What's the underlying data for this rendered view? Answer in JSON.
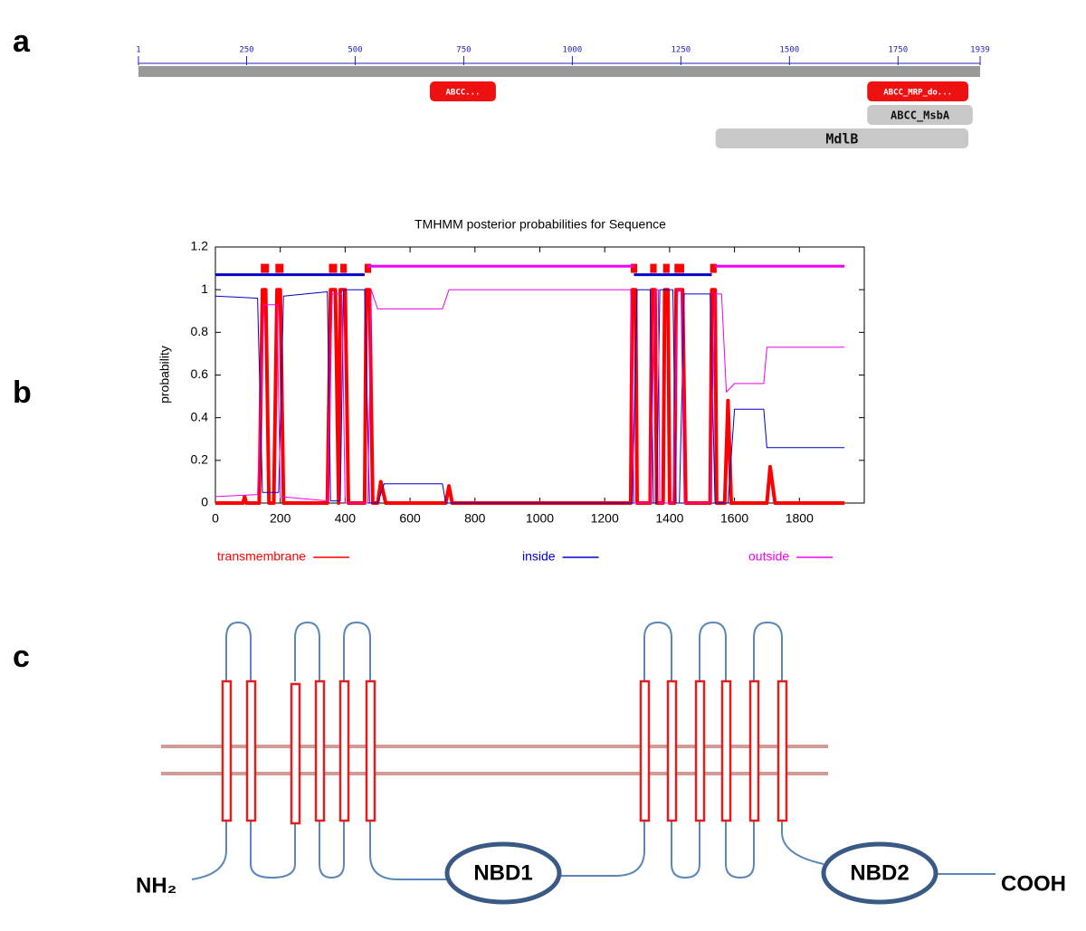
{
  "panel_labels": [
    "a",
    "b",
    "c"
  ],
  "domain_map": {
    "xlim": [
      1,
      1939
    ],
    "ticks": [
      1,
      250,
      500,
      750,
      1000,
      1250,
      1500,
      1750,
      1939
    ],
    "domains": [
      {
        "label": "ABCC...",
        "start": 672,
        "end": 824,
        "color": "#ee1111"
      },
      {
        "label": "ABCC_MRP_do...",
        "start": 1679,
        "end": 1912,
        "color": "#ee1111"
      },
      {
        "label": "ABCC_MsbA",
        "start": 1679,
        "end": 1922,
        "color": "#c8c8c8"
      },
      {
        "label": "MdlB",
        "start": 1330,
        "end": 1912,
        "color": "#c8c8c8"
      }
    ]
  },
  "chart_data": {
    "type": "line",
    "title": "TMHMM posterior probabilities for Sequence",
    "y_label": "probability",
    "xlim": [
      0,
      2000
    ],
    "xticks": [
      0,
      200,
      400,
      600,
      800,
      1000,
      1200,
      1400,
      1600,
      1800
    ],
    "ylim": [
      0,
      1.2
    ],
    "yticks": [
      0,
      0.2,
      0.4,
      0.6,
      0.8,
      1,
      1.2
    ],
    "series": [
      {
        "name": "transmembrane",
        "color": "#ff0000",
        "x": [
          0,
          85,
          90,
          95,
          135,
          145,
          155,
          165,
          180,
          190,
          200,
          210,
          345,
          355,
          370,
          380,
          385,
          400,
          410,
          460,
          465,
          475,
          485,
          500,
          510,
          525,
          710,
          720,
          730,
          1280,
          1285,
          1295,
          1300,
          1340,
          1345,
          1355,
          1360,
          1380,
          1385,
          1395,
          1400,
          1415,
          1420,
          1440,
          1450,
          1525,
          1530,
          1540,
          1545,
          1570,
          1580,
          1590,
          1700,
          1710,
          1725,
          1939
        ],
        "values": [
          0,
          0,
          0.03,
          0,
          0,
          1,
          1,
          0,
          0,
          1,
          1,
          0,
          0,
          1,
          1,
          0,
          1,
          1,
          0,
          0,
          1,
          1,
          0,
          0,
          0.1,
          0,
          0,
          0.08,
          0,
          0,
          1,
          1,
          0,
          0,
          1,
          1,
          0,
          0,
          1,
          1,
          0,
          0,
          1,
          1,
          0,
          0,
          1,
          1,
          0,
          0,
          0.48,
          0,
          0,
          0.17,
          0,
          0
        ],
        "track": [
          [
            140,
            165
          ],
          [
            185,
            210
          ],
          [
            350,
            375
          ],
          [
            385,
            405
          ],
          [
            460,
            480
          ],
          [
            1280,
            1300
          ],
          [
            1340,
            1360
          ],
          [
            1380,
            1400
          ],
          [
            1415,
            1445
          ],
          [
            1525,
            1545
          ]
        ]
      },
      {
        "name": "inside",
        "color": "#0000cc",
        "x": [
          0,
          130,
          145,
          195,
          210,
          345,
          355,
          385,
          395,
          460,
          475,
          500,
          520,
          700,
          710,
          1285,
          1300,
          1340,
          1350,
          1360,
          1370,
          1410,
          1420,
          1430,
          1445,
          1525,
          1540,
          1580,
          1600,
          1690,
          1700,
          1939
        ],
        "values": [
          0.97,
          0.96,
          0.05,
          0.05,
          0.97,
          0.99,
          0.01,
          0.01,
          1,
          1,
          0,
          0,
          0.09,
          0.09,
          0,
          0,
          1,
          1,
          0,
          0,
          1,
          1,
          0,
          0,
          0.98,
          0.98,
          0,
          0,
          0.44,
          0.44,
          0.26,
          0.26
        ],
        "track": [
          [
            0,
            460
          ],
          [
            1290,
            1530
          ]
        ]
      },
      {
        "name": "outside",
        "color": "#ee00ee",
        "x": [
          0,
          130,
          150,
          190,
          200,
          345,
          360,
          390,
          400,
          470,
          480,
          500,
          700,
          720,
          1280,
          1290,
          1340,
          1355,
          1365,
          1370,
          1410,
          1425,
          1435,
          1445,
          1525,
          1540,
          1560,
          1575,
          1600,
          1690,
          1700,
          1939
        ],
        "values": [
          0.03,
          0.04,
          0.93,
          0.93,
          0.03,
          0.01,
          0.98,
          0.98,
          0,
          0,
          1,
          0.91,
          0.91,
          1,
          1,
          0,
          0,
          1,
          1,
          0,
          0,
          1,
          1,
          0,
          0,
          0.98,
          0.98,
          0.52,
          0.56,
          0.56,
          0.73,
          0.73
        ],
        "track": [
          [
            470,
            1290
          ],
          [
            1540,
            1939
          ]
        ]
      }
    ]
  },
  "topology": {
    "n_terminus": "NH₂",
    "nbd1": "NBD1",
    "nbd2": "NBD2",
    "c_terminus": "COOH"
  }
}
